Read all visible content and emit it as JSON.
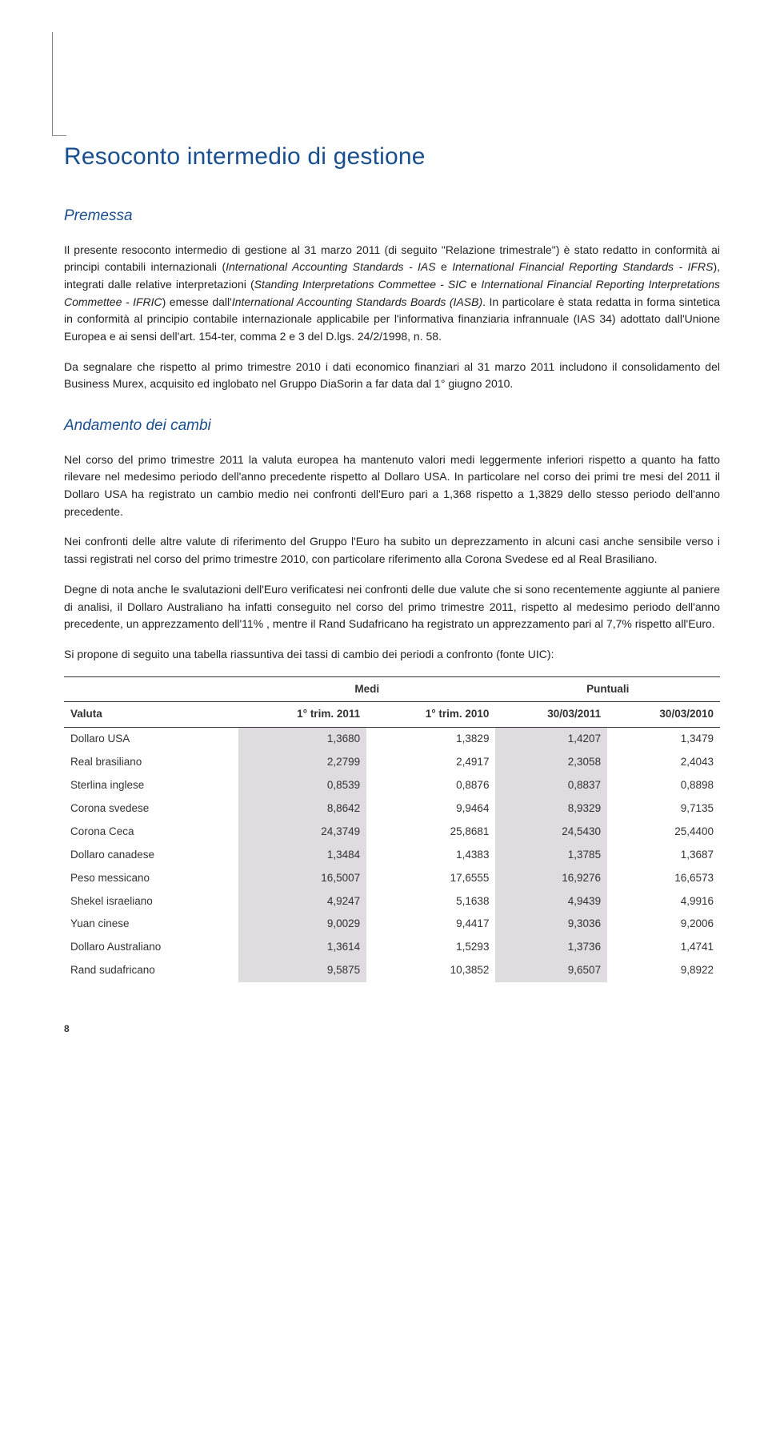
{
  "title": "Resoconto intermedio di gestione",
  "section1_heading": "Premessa",
  "para1_pre": "Il presente resoconto intermedio di gestione al 31 marzo 2011 (di seguito \"Relazione trimestrale\") è stato redatto in conformità ai principi contabili internazionali (",
  "para1_i1": "International Accounting Standards - IAS",
  "para1_m1": " e ",
  "para1_i2": "International Financial Reporting Standards - IFRS",
  "para1_m2": "), integrati dalle relative interpretazioni (",
  "para1_i3": "Standing Interpretations Commettee - SIC",
  "para1_m3": " e ",
  "para1_i4": "International Financial Reporting Interpretations Commettee - IFRIC",
  "para1_m4": ") emesse dall'",
  "para1_i5": "International Accounting Standards Boards (IASB)",
  "para1_post": ". In particolare è stata redatta in forma sintetica in conformità al principio contabile internazionale applicabile per l'informativa finanziaria infrannuale (IAS 34) adottato dall'Unione Europea e ai sensi dell'art. 154-ter, comma 2 e 3 del D.lgs. 24/2/1998, n. 58.",
  "para2": "Da segnalare che rispetto al primo trimestre 2010 i dati economico finanziari al 31 marzo 2011 includono il consolidamento del Business Murex, acquisito ed inglobato nel Gruppo DiaSorin a far data dal 1° giugno 2010.",
  "section2_heading": "Andamento dei cambi",
  "para3": "Nel corso del primo trimestre 2011 la valuta europea ha mantenuto valori medi leggermente inferiori rispetto a quanto ha fatto rilevare nel medesimo periodo dell'anno precedente rispetto al Dollaro USA. In particolare nel corso dei primi tre mesi del 2011 il Dollaro USA ha registrato un cambio medio nei confronti dell'Euro pari a 1,368 rispetto a 1,3829 dello stesso periodo dell'anno precedente.",
  "para4": "Nei confronti delle altre valute di riferimento del Gruppo l'Euro ha subito un deprezzamento in alcuni casi anche sensibile verso i tassi registrati nel corso del primo trimestre 2010, con particolare riferimento alla Corona Svedese ed al Real Brasiliano.",
  "para5": "Degne di nota anche le svalutazioni dell'Euro verificatesi nei confronti delle due valute che si sono recentemente aggiunte al paniere di analisi, il Dollaro Australiano ha infatti conseguito nel corso del primo trimestre 2011, rispetto al medesimo periodo dell'anno precedente, un apprezzamento dell'11% , mentre il Rand Sudafricano ha registrato un apprezzamento pari al 7,7% rispetto all'Euro.",
  "para6": "Si propone di seguito una tabella riassuntiva dei tassi di cambio dei periodi a confronto (fonte UIC):",
  "table": {
    "group1": "Medi",
    "group2": "Puntuali",
    "col0": "Valuta",
    "col1": "1° trim. 2011",
    "col2": "1° trim. 2010",
    "col3": "30/03/2011",
    "col4": "30/03/2010",
    "rows": [
      {
        "c0": "Dollaro USA",
        "c1": "1,3680",
        "c2": "1,3829",
        "c3": "1,4207",
        "c4": "1,3479"
      },
      {
        "c0": "Real brasiliano",
        "c1": "2,2799",
        "c2": "2,4917",
        "c3": "2,3058",
        "c4": "2,4043"
      },
      {
        "c0": "Sterlina inglese",
        "c1": "0,8539",
        "c2": "0,8876",
        "c3": "0,8837",
        "c4": "0,8898"
      },
      {
        "c0": "Corona svedese",
        "c1": "8,8642",
        "c2": "9,9464",
        "c3": "8,9329",
        "c4": "9,7135"
      },
      {
        "c0": "Corona Ceca",
        "c1": "24,3749",
        "c2": "25,8681",
        "c3": "24,5430",
        "c4": "25,4400"
      },
      {
        "c0": "Dollaro canadese",
        "c1": "1,3484",
        "c2": "1,4383",
        "c3": "1,3785",
        "c4": "1,3687"
      },
      {
        "c0": "Peso messicano",
        "c1": "16,5007",
        "c2": "17,6555",
        "c3": "16,9276",
        "c4": "16,6573"
      },
      {
        "c0": "Shekel israeliano",
        "c1": "4,9247",
        "c2": "5,1638",
        "c3": "4,9439",
        "c4": "4,9916"
      },
      {
        "c0": "Yuan cinese",
        "c1": "9,0029",
        "c2": "9,4417",
        "c3": "9,3036",
        "c4": "9,2006"
      },
      {
        "c0": "Dollaro Australiano",
        "c1": "1,3614",
        "c2": "1,5293",
        "c3": "1,3736",
        "c4": "1,4741"
      },
      {
        "c0": "Rand sudafricano",
        "c1": "9,5875",
        "c2": "10,3852",
        "c3": "9,6507",
        "c4": "9,8922"
      }
    ]
  },
  "page_number": "8",
  "styling": {
    "heading_color": "#1a4f8f",
    "shade_color": "#dfdbe0",
    "text_color": "#222222",
    "body_fontsize": 14,
    "h1_fontsize": 30,
    "h2_fontsize": 19
  }
}
